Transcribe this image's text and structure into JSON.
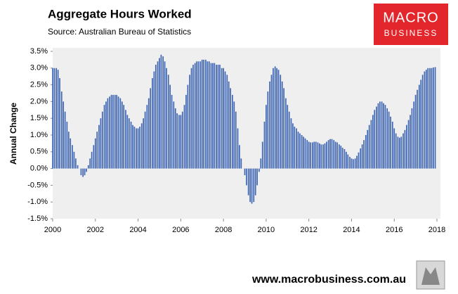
{
  "chart_data": {
    "type": "bar",
    "title": "Aggregate Hours Worked",
    "subtitle": "Source: Australian Bureau of Statistics",
    "y_label": "Annual Change",
    "color": "#3f66b3",
    "xlim": [
      2000,
      2018
    ],
    "xticks": [
      2000,
      2002,
      2004,
      2006,
      2008,
      2010,
      2012,
      2014,
      2016,
      2018
    ],
    "ylim": [
      -1.5,
      3.5
    ],
    "yticks": [
      {
        "value": -1.5,
        "label": "-1.5%"
      },
      {
        "value": -1.0,
        "label": "-1.0%"
      },
      {
        "value": -0.5,
        "label": "-0.5%"
      },
      {
        "value": 0,
        "label": "0.0%"
      },
      {
        "value": 0.5,
        "label": "0.5%"
      },
      {
        "value": 1.0,
        "label": "1.0%"
      },
      {
        "value": 1.5,
        "label": "1.5%"
      },
      {
        "value": 2.0,
        "label": "2.0%"
      },
      {
        "value": 2.5,
        "label": "2.5%"
      },
      {
        "value": 3.0,
        "label": "3.0%"
      },
      {
        "value": 3.5,
        "label": "3.5%"
      }
    ],
    "x": [
      2000,
      2000.08,
      2000.17,
      2000.25,
      2000.33,
      2000.42,
      2000.5,
      2000.58,
      2000.67,
      2000.75,
      2000.83,
      2000.92,
      2001,
      2001.08,
      2001.17,
      2001.25,
      2001.33,
      2001.42,
      2001.5,
      2001.58,
      2001.67,
      2001.75,
      2001.83,
      2001.92,
      2002,
      2002.08,
      2002.17,
      2002.25,
      2002.33,
      2002.42,
      2002.5,
      2002.58,
      2002.67,
      2002.75,
      2002.83,
      2002.92,
      2003,
      2003.08,
      2003.17,
      2003.25,
      2003.33,
      2003.42,
      2003.5,
      2003.58,
      2003.67,
      2003.75,
      2003.83,
      2003.92,
      2004,
      2004.08,
      2004.17,
      2004.25,
      2004.33,
      2004.42,
      2004.5,
      2004.58,
      2004.67,
      2004.75,
      2004.83,
      2004.92,
      2005,
      2005.08,
      2005.17,
      2005.25,
      2005.33,
      2005.42,
      2005.5,
      2005.58,
      2005.67,
      2005.75,
      2005.83,
      2005.92,
      2006,
      2006.08,
      2006.17,
      2006.25,
      2006.33,
      2006.42,
      2006.5,
      2006.58,
      2006.67,
      2006.75,
      2006.83,
      2006.92,
      2007,
      2007.08,
      2007.17,
      2007.25,
      2007.33,
      2007.42,
      2007.5,
      2007.58,
      2007.67,
      2007.75,
      2007.83,
      2007.92,
      2008,
      2008.08,
      2008.17,
      2008.25,
      2008.33,
      2008.42,
      2008.5,
      2008.58,
      2008.67,
      2008.75,
      2008.83,
      2008.92,
      2009,
      2009.08,
      2009.17,
      2009.25,
      2009.33,
      2009.42,
      2009.5,
      2009.58,
      2009.67,
      2009.75,
      2009.83,
      2009.92,
      2010,
      2010.08,
      2010.17,
      2010.25,
      2010.33,
      2010.42,
      2010.5,
      2010.58,
      2010.67,
      2010.75,
      2010.83,
      2010.92,
      2011,
      2011.08,
      2011.17,
      2011.25,
      2011.33,
      2011.42,
      2011.5,
      2011.58,
      2011.67,
      2011.75,
      2011.83,
      2011.92,
      2012,
      2012.08,
      2012.17,
      2012.25,
      2012.33,
      2012.42,
      2012.5,
      2012.58,
      2012.67,
      2012.75,
      2012.83,
      2012.92,
      2013,
      2013.08,
      2013.17,
      2013.25,
      2013.33,
      2013.42,
      2013.5,
      2013.58,
      2013.67,
      2013.75,
      2013.83,
      2013.92,
      2014,
      2014.08,
      2014.17,
      2014.25,
      2014.33,
      2014.42,
      2014.5,
      2014.58,
      2014.67,
      2014.75,
      2014.83,
      2014.92,
      2015,
      2015.08,
      2015.17,
      2015.25,
      2015.33,
      2015.42,
      2015.5,
      2015.58,
      2015.67,
      2015.75,
      2015.83,
      2015.92,
      2016,
      2016.08,
      2016.17,
      2016.25,
      2016.33,
      2016.42,
      2016.5,
      2016.58,
      2016.67,
      2016.75,
      2016.83,
      2016.92,
      2017,
      2017.08,
      2017.17,
      2017.25,
      2017.33,
      2017.42,
      2017.5,
      2017.58,
      2017.67,
      2017.75,
      2017.83,
      2017.92
    ],
    "values": [
      3.0,
      3.0,
      3.0,
      2.95,
      2.7,
      2.3,
      2.0,
      1.7,
      1.4,
      1.1,
      0.9,
      0.7,
      0.5,
      0.3,
      0.1,
      0.0,
      -0.2,
      -0.25,
      -0.2,
      -0.1,
      0.1,
      0.3,
      0.5,
      0.7,
      0.9,
      1.1,
      1.3,
      1.5,
      1.7,
      1.9,
      2.0,
      2.1,
      2.15,
      2.2,
      2.2,
      2.2,
      2.2,
      2.15,
      2.1,
      2.0,
      1.9,
      1.75,
      1.6,
      1.5,
      1.4,
      1.3,
      1.25,
      1.2,
      1.2,
      1.25,
      1.35,
      1.5,
      1.7,
      1.9,
      2.1,
      2.4,
      2.7,
      2.9,
      3.1,
      3.2,
      3.3,
      3.4,
      3.35,
      3.2,
      3.0,
      2.8,
      2.5,
      2.2,
      2.0,
      1.8,
      1.65,
      1.6,
      1.6,
      1.7,
      1.9,
      2.2,
      2.5,
      2.8,
      3.0,
      3.1,
      3.15,
      3.2,
      3.2,
      3.2,
      3.25,
      3.25,
      3.25,
      3.2,
      3.2,
      3.15,
      3.15,
      3.15,
      3.1,
      3.1,
      3.1,
      3.0,
      3.0,
      2.9,
      2.8,
      2.6,
      2.4,
      2.2,
      2.0,
      1.7,
      1.2,
      0.7,
      0.3,
      0.0,
      -0.2,
      -0.5,
      -0.8,
      -1.0,
      -1.05,
      -1.0,
      -0.8,
      -0.5,
      -0.1,
      0.3,
      0.8,
      1.4,
      1.9,
      2.3,
      2.6,
      2.8,
      3.0,
      3.05,
      3.0,
      2.95,
      2.8,
      2.6,
      2.4,
      2.1,
      1.9,
      1.7,
      1.5,
      1.35,
      1.25,
      1.2,
      1.1,
      1.05,
      1.0,
      0.95,
      0.9,
      0.85,
      0.8,
      0.78,
      0.78,
      0.8,
      0.8,
      0.78,
      0.75,
      0.72,
      0.72,
      0.75,
      0.8,
      0.85,
      0.88,
      0.88,
      0.85,
      0.8,
      0.78,
      0.72,
      0.68,
      0.62,
      0.58,
      0.5,
      0.42,
      0.35,
      0.3,
      0.28,
      0.3,
      0.38,
      0.48,
      0.6,
      0.72,
      0.85,
      1.0,
      1.15,
      1.3,
      1.45,
      1.6,
      1.75,
      1.85,
      1.95,
      2.0,
      2.0,
      1.95,
      1.9,
      1.8,
      1.7,
      1.55,
      1.4,
      1.2,
      1.05,
      0.95,
      0.92,
      0.95,
      1.05,
      1.15,
      1.3,
      1.45,
      1.6,
      1.8,
      2.0,
      2.2,
      2.35,
      2.5,
      2.65,
      2.8,
      2.9,
      2.95,
      3.0,
      3.0,
      3.0,
      3.02,
      3.03
    ]
  },
  "logo": {
    "line1": "MACRO",
    "line2": "BUSINESS"
  },
  "footer": "www.macrobusiness.com.au"
}
